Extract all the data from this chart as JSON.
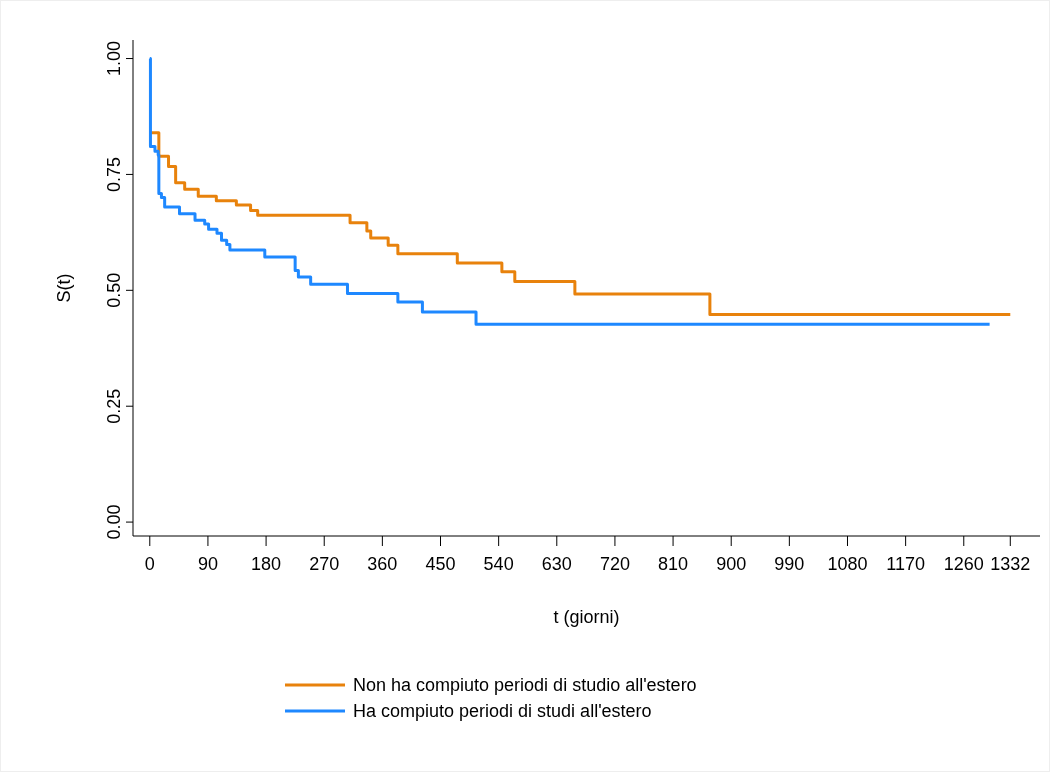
{
  "chart_data": {
    "type": "step",
    "xlabel": "t (giorni)",
    "ylabel": "S(t)",
    "xlim": [
      -26,
      1378
    ],
    "ylim": [
      -0.03,
      1.04
    ],
    "xticks": [
      0,
      90,
      180,
      270,
      360,
      450,
      540,
      630,
      720,
      810,
      900,
      990,
      1080,
      1170,
      1260,
      1332
    ],
    "yticks": [
      {
        "value": 0,
        "label": "0.00"
      },
      {
        "value": 0.25,
        "label": "0.25"
      },
      {
        "value": 0.5,
        "label": "0.50"
      },
      {
        "value": 0.75,
        "label": "0.75"
      },
      {
        "value": 1,
        "label": "1.00"
      }
    ],
    "grid": false,
    "legend": "bottom",
    "line_style": "solid",
    "marker": "none",
    "series": [
      {
        "name": "Non ha compiuto periodi di studio all'estero",
        "color": "#e8820c",
        "x": [
          0,
          14,
          29,
          40,
          54,
          75,
          103,
          134,
          156,
          167,
          310,
          336,
          342,
          369,
          384,
          476,
          545,
          565,
          658,
          867,
          1332
        ],
        "values": [
          0.84,
          0.789,
          0.767,
          0.732,
          0.718,
          0.703,
          0.693,
          0.684,
          0.672,
          0.662,
          0.646,
          0.628,
          0.613,
          0.597,
          0.579,
          0.559,
          0.54,
          0.519,
          0.492,
          0.448,
          0.448
        ]
      },
      {
        "name": "Ha compiuto periodi di studi all'estero",
        "color": "#1e88ff",
        "x": [
          0,
          1,
          8,
          13,
          14,
          18,
          23,
          46,
          70,
          85,
          91,
          104,
          111,
          119,
          124,
          178,
          225,
          230,
          249,
          306,
          384,
          422,
          505,
          1300
        ],
        "values": [
          1,
          0.81,
          0.8,
          0.792,
          0.709,
          0.7,
          0.68,
          0.665,
          0.651,
          0.643,
          0.632,
          0.623,
          0.608,
          0.599,
          0.587,
          0.572,
          0.543,
          0.529,
          0.513,
          0.493,
          0.475,
          0.453,
          0.427,
          0.427
        ]
      }
    ]
  }
}
